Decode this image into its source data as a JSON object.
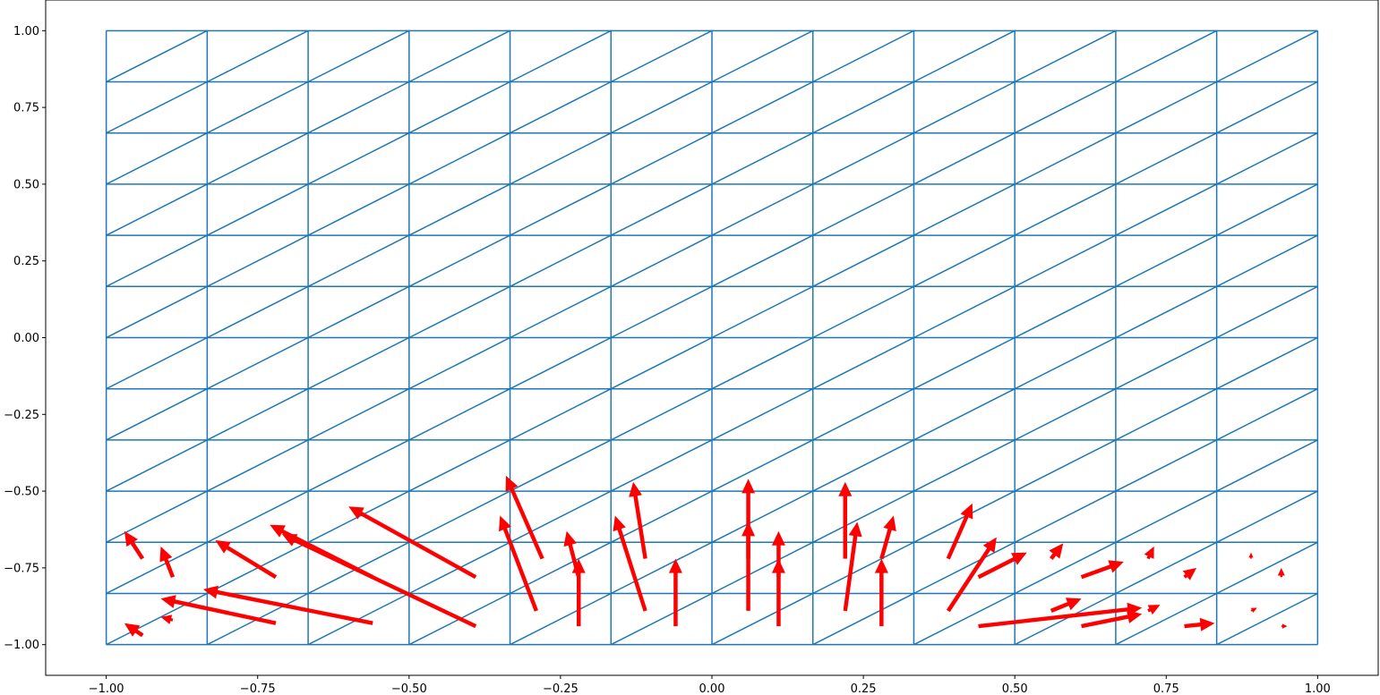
{
  "chart_data": {
    "type": "quiver",
    "title": "",
    "xlabel": "",
    "ylabel": "",
    "xlim": [
      -1.1,
      1.1
    ],
    "ylim": [
      -1.1,
      1.1
    ],
    "x_ticks": [
      -1.0,
      -0.75,
      -0.5,
      -0.25,
      0.0,
      0.25,
      0.5,
      0.75,
      1.0
    ],
    "x_tick_labels": [
      "−1.00",
      "−0.75",
      "−0.50",
      "−0.25",
      "0.00",
      "0.25",
      "0.50",
      "0.75",
      "1.00"
    ],
    "y_ticks": [
      1.0,
      0.75,
      0.5,
      0.25,
      0.0,
      -0.25,
      -0.5,
      -0.75,
      -1.0
    ],
    "y_tick_labels": [
      "1.00",
      "0.75",
      "0.50",
      "0.25",
      "0.00",
      "−0.25",
      "−0.50",
      "−0.75",
      "−1.00"
    ],
    "mesh": {
      "description": "structured triangular mesh on [-1,1]x[-1,1], 12x12 cells, each cell split by its lower-left to upper-right diagonal",
      "nx": 12,
      "ny": 12,
      "x_range": [
        -1.0,
        1.0
      ],
      "y_range": [
        -1.0,
        1.0
      ],
      "diagonal": "lower-left to upper-right",
      "color": "#1f77b4"
    },
    "vector_field": {
      "description": "one arrow per triangle, anchored near the triangle centroid, showing the piecewise-constant velocity in that triangle",
      "color": "#ff0000",
      "samples": [
        {
          "x": -0.94,
          "y": -0.97,
          "u": -0.03,
          "v": 0.04
        },
        {
          "x": -0.89,
          "y": -0.92,
          "u": -0.02,
          "v": 0.01
        },
        {
          "x": -0.72,
          "y": -0.93,
          "u": -0.19,
          "v": 0.08
        },
        {
          "x": -0.56,
          "y": -0.93,
          "u": -0.28,
          "v": 0.11
        },
        {
          "x": -0.39,
          "y": -0.94,
          "u": -0.32,
          "v": 0.3
        },
        {
          "x": -0.29,
          "y": -0.89,
          "u": -0.06,
          "v": 0.31
        },
        {
          "x": -0.22,
          "y": -0.94,
          "u": 0.0,
          "v": 0.22
        },
        {
          "x": -0.11,
          "y": -0.89,
          "u": -0.05,
          "v": 0.31
        },
        {
          "x": -0.06,
          "y": -0.94,
          "u": 0.0,
          "v": 0.22
        },
        {
          "x": 0.06,
          "y": -0.89,
          "u": 0.0,
          "v": 0.29
        },
        {
          "x": 0.11,
          "y": -0.94,
          "u": 0.0,
          "v": 0.22
        },
        {
          "x": 0.22,
          "y": -0.89,
          "u": 0.02,
          "v": 0.29
        },
        {
          "x": 0.28,
          "y": -0.94,
          "u": 0.0,
          "v": 0.22
        },
        {
          "x": 0.39,
          "y": -0.89,
          "u": 0.08,
          "v": 0.24
        },
        {
          "x": 0.44,
          "y": -0.94,
          "u": 0.27,
          "v": 0.06
        },
        {
          "x": 0.56,
          "y": -0.89,
          "u": 0.05,
          "v": 0.04
        },
        {
          "x": 0.61,
          "y": -0.94,
          "u": 0.1,
          "v": 0.04
        },
        {
          "x": 0.72,
          "y": -0.89,
          "u": 0.02,
          "v": 0.02
        },
        {
          "x": 0.78,
          "y": -0.94,
          "u": 0.05,
          "v": 0.01
        },
        {
          "x": 0.89,
          "y": -0.89,
          "u": 0.01,
          "v": 0.01
        },
        {
          "x": 0.94,
          "y": -0.94,
          "u": 0.01,
          "v": 0.0
        },
        {
          "x": -0.94,
          "y": -0.72,
          "u": -0.03,
          "v": 0.09
        },
        {
          "x": -0.89,
          "y": -0.78,
          "u": -0.02,
          "v": 0.1
        },
        {
          "x": -0.72,
          "y": -0.78,
          "u": -0.1,
          "v": 0.12
        },
        {
          "x": -0.56,
          "y": -0.78,
          "u": -0.17,
          "v": 0.17
        },
        {
          "x": -0.39,
          "y": -0.78,
          "u": -0.21,
          "v": 0.23
        },
        {
          "x": -0.28,
          "y": -0.72,
          "u": -0.06,
          "v": 0.27
        },
        {
          "x": -0.22,
          "y": -0.78,
          "u": -0.02,
          "v": 0.15
        },
        {
          "x": -0.11,
          "y": -0.72,
          "u": -0.02,
          "v": 0.25
        },
        {
          "x": 0.06,
          "y": -0.72,
          "u": 0.0,
          "v": 0.26
        },
        {
          "x": 0.11,
          "y": -0.78,
          "u": 0.0,
          "v": 0.15
        },
        {
          "x": 0.22,
          "y": -0.72,
          "u": 0.0,
          "v": 0.25
        },
        {
          "x": 0.28,
          "y": -0.72,
          "u": 0.02,
          "v": 0.14
        },
        {
          "x": 0.39,
          "y": -0.72,
          "u": 0.04,
          "v": 0.18
        },
        {
          "x": 0.44,
          "y": -0.78,
          "u": 0.08,
          "v": 0.08
        },
        {
          "x": 0.56,
          "y": -0.72,
          "u": 0.02,
          "v": 0.05
        },
        {
          "x": 0.61,
          "y": -0.78,
          "u": 0.07,
          "v": 0.05
        },
        {
          "x": 0.72,
          "y": -0.72,
          "u": 0.01,
          "v": 0.04
        },
        {
          "x": 0.78,
          "y": -0.78,
          "u": 0.02,
          "v": 0.03
        },
        {
          "x": 0.89,
          "y": -0.72,
          "u": 0.0,
          "v": 0.02
        },
        {
          "x": 0.94,
          "y": -0.78,
          "u": 0.0,
          "v": 0.03
        }
      ]
    }
  }
}
